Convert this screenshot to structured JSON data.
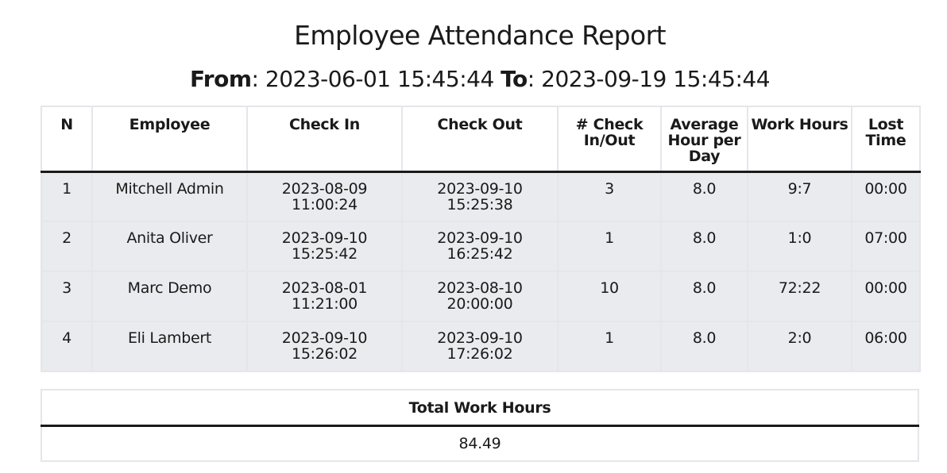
{
  "report": {
    "title": "Employee Attendance Report",
    "from_label": "From",
    "from_value": "2023-06-01 15:45:44",
    "to_label": "To",
    "to_value": "2023-09-19 15:45:44"
  },
  "attendance_table": {
    "headers": {
      "n": "N",
      "employee": "Employee",
      "check_in": "Check In",
      "check_out": "Check Out",
      "check_count": "# Check In/Out",
      "avg_hours": "Average Hour per Day",
      "work_hours": "Work Hours",
      "lost_time": "Lost Time"
    },
    "rows": [
      {
        "n": "1",
        "employee": "Mitchell Admin",
        "check_in_date": "2023-08-09",
        "check_in_time": "11:00:24",
        "check_out_date": "2023-09-10",
        "check_out_time": "15:25:38",
        "check_count": "3",
        "avg_hours": "8.0",
        "work_hours": "9:7",
        "lost_time": "00:00"
      },
      {
        "n": "2",
        "employee": "Anita Oliver",
        "check_in_date": "2023-09-10",
        "check_in_time": "15:25:42",
        "check_out_date": "2023-09-10",
        "check_out_time": "16:25:42",
        "check_count": "1",
        "avg_hours": "8.0",
        "work_hours": "1:0",
        "lost_time": "07:00"
      },
      {
        "n": "3",
        "employee": "Marc Demo",
        "check_in_date": "2023-08-01",
        "check_in_time": "11:21:00",
        "check_out_date": "2023-08-10",
        "check_out_time": "20:00:00",
        "check_count": "10",
        "avg_hours": "8.0",
        "work_hours": "72:22",
        "lost_time": "00:00"
      },
      {
        "n": "4",
        "employee": "Eli Lambert",
        "check_in_date": "2023-09-10",
        "check_in_time": "15:26:02",
        "check_out_date": "2023-09-10",
        "check_out_time": "17:26:02",
        "check_count": "1",
        "avg_hours": "8.0",
        "work_hours": "2:0",
        "lost_time": "06:00"
      }
    ]
  },
  "total_table": {
    "header": "Total Work Hours",
    "value": "84.49"
  }
}
